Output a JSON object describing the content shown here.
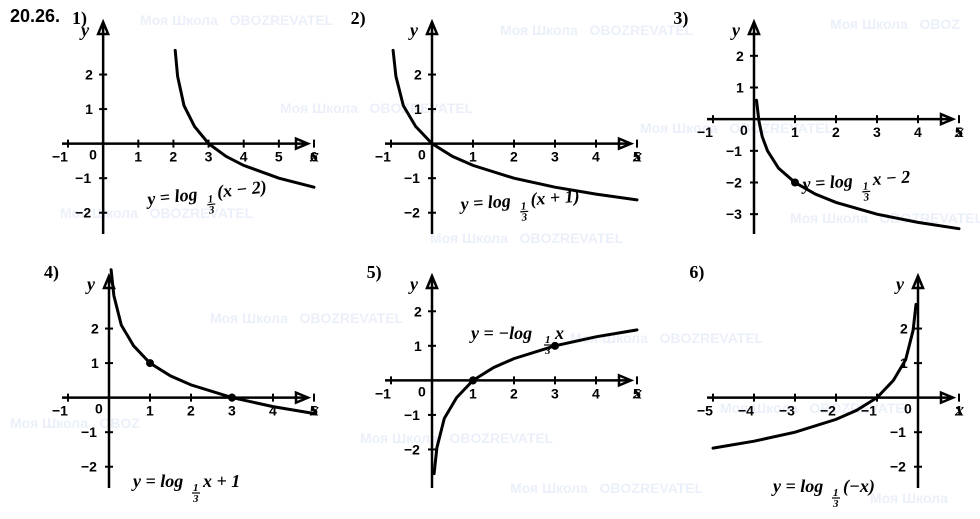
{
  "problem_label": "20.26.",
  "watermark": {
    "text": "Моя Школа  OBOZREVATEL",
    "color": "#3b6fcc",
    "opacity": 0.1
  },
  "global": {
    "background_color": "#ffffff",
    "axis_color": "#000000",
    "curve_color": "#000000",
    "curve_width": 3,
    "axis_width": 2.5,
    "font_family": "Times New Roman",
    "label_fontsize_pt": 14,
    "formula_fontsize_pt": 16,
    "number_fontsize_pt": 14
  },
  "plots": [
    {
      "idx": "1)",
      "type": "line",
      "formula": "y = log_{1/3}(x − 2)",
      "xlim": [
        -1,
        6
      ],
      "ylim": [
        -2.5,
        3
      ],
      "xticks": [
        -1,
        1,
        2,
        3,
        4,
        5,
        6
      ],
      "yticks": [
        -2,
        -1,
        1,
        2
      ],
      "asymptote_x": 2,
      "points": [
        [
          2.05,
          2.7
        ],
        [
          2.12,
          1.95
        ],
        [
          2.3,
          1.1
        ],
        [
          2.6,
          0.5
        ],
        [
          3,
          0
        ],
        [
          3.5,
          -0.37
        ],
        [
          4,
          -0.63
        ],
        [
          5,
          -1.0
        ],
        [
          6,
          -1.26
        ]
      ]
    },
    {
      "idx": "2)",
      "type": "line",
      "formula": "y = log_{1/3}(x + 1)",
      "xlim": [
        -1,
        5
      ],
      "ylim": [
        -2.5,
        3
      ],
      "xticks": [
        -1,
        1,
        2,
        3,
        4,
        5
      ],
      "yticks": [
        -2,
        -1,
        1,
        2
      ],
      "asymptote_x": -1,
      "points": [
        [
          -0.95,
          2.7
        ],
        [
          -0.88,
          1.95
        ],
        [
          -0.7,
          1.1
        ],
        [
          -0.4,
          0.5
        ],
        [
          0,
          0
        ],
        [
          0.5,
          -0.37
        ],
        [
          1,
          -0.63
        ],
        [
          2,
          -1.0
        ],
        [
          3,
          -1.26
        ],
        [
          4,
          -1.46
        ],
        [
          5,
          -1.63
        ]
      ]
    },
    {
      "idx": "3)",
      "type": "line",
      "formula": "y = log_{1/3} x − 2",
      "xlim": [
        -1,
        5
      ],
      "ylim": [
        -3.5,
        2.5
      ],
      "xticks": [
        -1,
        1,
        2,
        3,
        4,
        5
      ],
      "yticks": [
        -3,
        -2,
        -1,
        1,
        2
      ],
      "asymptote_x": 0,
      "sample_dot": [
        1,
        -2
      ],
      "points": [
        [
          0.06,
          0.6
        ],
        [
          0.12,
          -0.05
        ],
        [
          0.2,
          -0.55
        ],
        [
          0.33,
          -1
        ],
        [
          0.6,
          -1.55
        ],
        [
          1,
          -2
        ],
        [
          1.5,
          -2.37
        ],
        [
          2,
          -2.63
        ],
        [
          3,
          -3.0
        ],
        [
          4,
          -3.26
        ],
        [
          5,
          -3.46
        ]
      ]
    },
    {
      "idx": "4)",
      "type": "line",
      "formula": "y = log_{1/3} x + 1",
      "xlim": [
        -1,
        5
      ],
      "ylim": [
        -2.5,
        3
      ],
      "xticks": [
        -1,
        1,
        2,
        3,
        4,
        5
      ],
      "yticks": [
        -2,
        -1,
        1,
        2
      ],
      "asymptote_x": 0,
      "sample_dots": [
        [
          1,
          1
        ],
        [
          3,
          0
        ]
      ],
      "points": [
        [
          0.05,
          3.7
        ],
        [
          0.12,
          2.95
        ],
        [
          0.3,
          2.1
        ],
        [
          0.6,
          1.5
        ],
        [
          1,
          1
        ],
        [
          1.5,
          0.63
        ],
        [
          2,
          0.37
        ],
        [
          3,
          0
        ],
        [
          4,
          -0.26
        ],
        [
          5,
          -0.46
        ]
      ]
    },
    {
      "idx": "5)",
      "type": "line",
      "formula": "y = −log_{1/3} x",
      "xlim": [
        -1,
        5
      ],
      "ylim": [
        -3,
        2.5
      ],
      "xticks": [
        -1,
        1,
        2,
        3,
        4,
        5
      ],
      "yticks": [
        -2,
        -1,
        1,
        2
      ],
      "asymptote_x": 0,
      "sample_dots": [
        [
          1,
          0
        ],
        [
          3,
          1
        ]
      ],
      "points": [
        [
          0.05,
          -2.7
        ],
        [
          0.12,
          -1.95
        ],
        [
          0.3,
          -1.1
        ],
        [
          0.6,
          -0.5
        ],
        [
          1,
          0
        ],
        [
          1.5,
          0.37
        ],
        [
          2,
          0.63
        ],
        [
          3,
          1.0
        ],
        [
          4,
          1.26
        ],
        [
          5,
          1.46
        ]
      ]
    },
    {
      "idx": "6)",
      "type": "line",
      "formula": "y = log_{1/3}(−x)",
      "xlim": [
        -5,
        1
      ],
      "ylim": [
        -2.5,
        3
      ],
      "xticks": [
        -5,
        -4,
        -3,
        -2,
        -1,
        1
      ],
      "yticks": [
        -2,
        -1,
        1,
        2
      ],
      "asymptote_x": 0,
      "points": [
        [
          -5,
          -1.46
        ],
        [
          -4,
          -1.26
        ],
        [
          -3,
          -1.0
        ],
        [
          -2,
          -0.63
        ],
        [
          -1.5,
          -0.37
        ],
        [
          -1,
          0
        ],
        [
          -0.6,
          0.5
        ],
        [
          -0.3,
          1.1
        ],
        [
          -0.12,
          1.95
        ],
        [
          -0.05,
          2.7
        ]
      ]
    }
  ]
}
